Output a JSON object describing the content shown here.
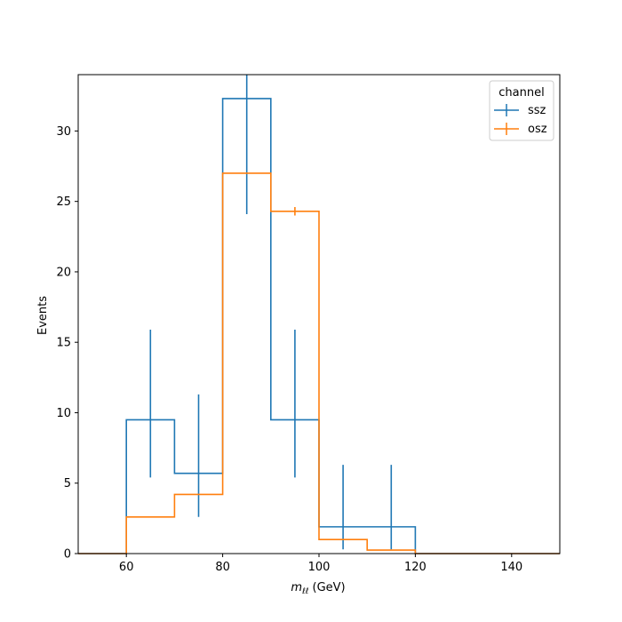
{
  "chart_data": {
    "type": "histogram-step",
    "xlabel_math": "m",
    "xlabel_sub": "ℓℓ",
    "xlabel_unit": "(GeV)",
    "ylabel": "Events",
    "xlim": [
      50,
      150
    ],
    "ylim": [
      0,
      34
    ],
    "grid": false,
    "xticks": [
      60,
      80,
      100,
      120,
      140
    ],
    "yticks": [
      0,
      5,
      10,
      15,
      20,
      25,
      30
    ],
    "legend": {
      "title": "channel",
      "placement": "top-right"
    },
    "bin_edges": [
      50,
      60,
      70,
      80,
      90,
      100,
      110,
      120,
      130,
      140,
      150
    ],
    "series": [
      {
        "name": "ssz",
        "color": "#1f77b4",
        "values": [
          0,
          9.5,
          5.7,
          32.3,
          9.5,
          1.9,
          1.9,
          0,
          0,
          0
        ],
        "errors": [
          {
            "x": 65,
            "low": 5.4,
            "high": 15.9
          },
          {
            "x": 75,
            "low": 2.6,
            "high": 11.3
          },
          {
            "x": 85,
            "low": 24.1,
            "high": 34.0
          },
          {
            "x": 95,
            "low": 5.4,
            "high": 15.9
          },
          {
            "x": 105,
            "low": 0.3,
            "high": 6.3
          },
          {
            "x": 115,
            "low": 0.3,
            "high": 6.3
          }
        ]
      },
      {
        "name": "osz",
        "color": "#ff7f0e",
        "values": [
          0,
          2.6,
          4.2,
          27.0,
          24.3,
          1.0,
          0.25,
          0,
          0,
          0
        ],
        "errors": [
          {
            "x": 95,
            "low": 24.0,
            "high": 24.6
          }
        ]
      }
    ]
  }
}
